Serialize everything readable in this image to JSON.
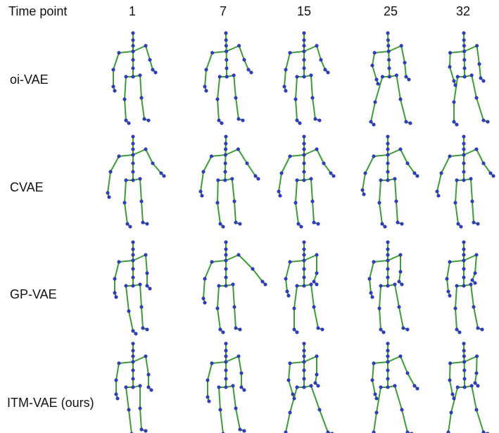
{
  "header_label": "Time point",
  "time_points": [
    "1",
    "7",
    "15",
    "25",
    "32"
  ],
  "rows": [
    {
      "label": "oi-VAE"
    },
    {
      "label": "CVAE"
    },
    {
      "label": "GP-VAE"
    },
    {
      "label": "ITM-VAE (ours)"
    }
  ],
  "colors": {
    "bone": "#3f9a3a",
    "joint": "#2f3fd0",
    "joint_stroke": "#1a237e"
  }
}
